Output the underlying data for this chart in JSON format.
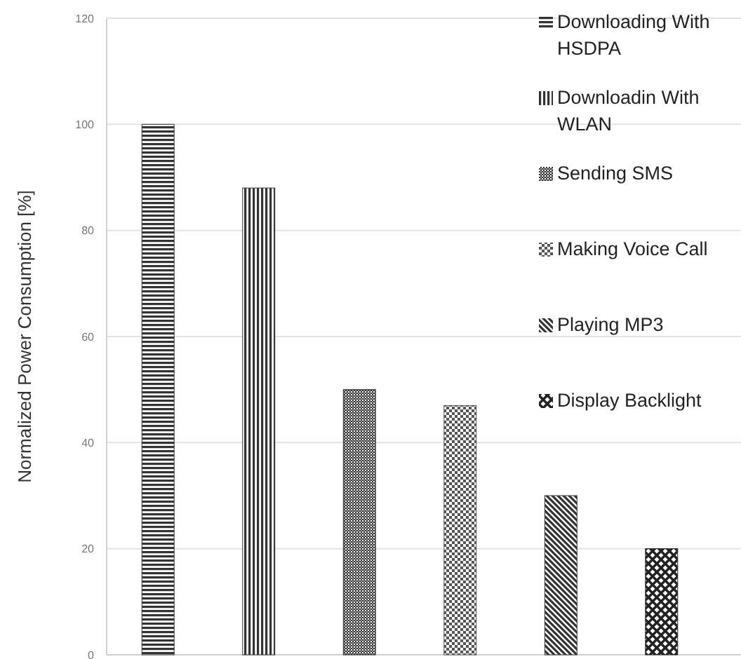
{
  "chart_data": {
    "type": "bar",
    "ylabel": "Normalized Power Consumption [%]",
    "categories": [
      null,
      null,
      null,
      null,
      null,
      null
    ],
    "series": [
      {
        "name": "Downloading With HSDPA",
        "color": "#333333",
        "values": [
          100,
          null,
          null,
          null,
          null,
          null
        ]
      },
      {
        "name": "Downloadin With WLAN",
        "color": "#333333",
        "values": [
          null,
          88,
          null,
          null,
          null,
          null
        ]
      },
      {
        "name": "Sending SMS",
        "color": "#333333",
        "values": [
          null,
          null,
          50,
          null,
          null,
          null
        ]
      },
      {
        "name": "Making Voice Call",
        "color": "#555555",
        "values": [
          null,
          null,
          null,
          47,
          null,
          null
        ]
      },
      {
        "name": "Playing MP3",
        "color": "#333333",
        "values": [
          null,
          null,
          null,
          null,
          30,
          null
        ]
      },
      {
        "name": "Display Backlight",
        "color": "#222222",
        "values": [
          null,
          null,
          null,
          null,
          null,
          20
        ]
      }
    ],
    "ylim": [
      0,
      120
    ],
    "yticks": [
      0,
      20,
      40,
      60,
      80,
      100,
      120
    ],
    "grid": "y",
    "legend": "top right"
  }
}
